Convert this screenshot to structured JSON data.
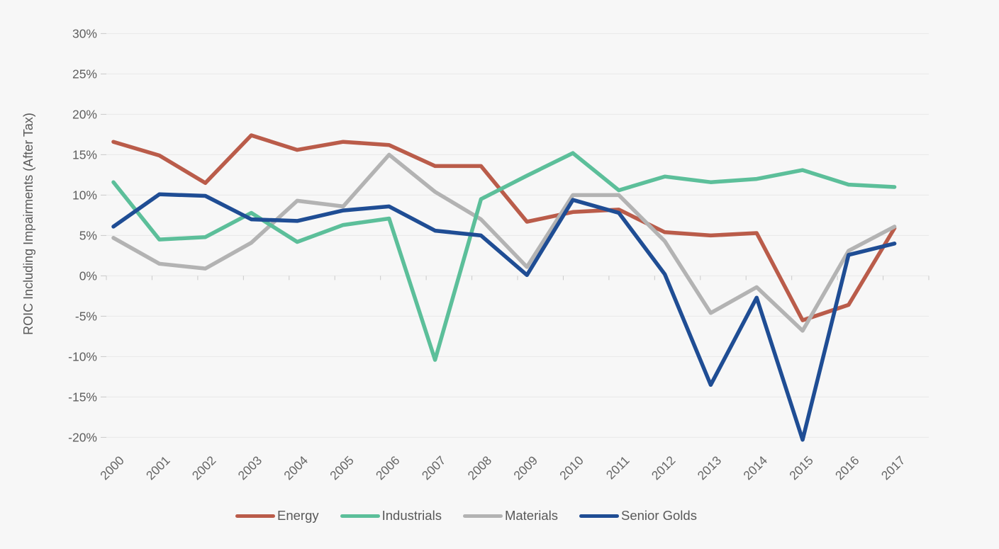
{
  "chart_data": {
    "type": "line",
    "title": "",
    "xlabel": "",
    "ylabel": "ROIC Including Impairments (After Tax)",
    "categories": [
      "2000",
      "2001",
      "2002",
      "2003",
      "2004",
      "2005",
      "2006",
      "2007",
      "2008",
      "2009",
      "2010",
      "2011",
      "2012",
      "2013",
      "2014",
      "2015",
      "2016",
      "2017"
    ],
    "series": [
      {
        "name": "Energy",
        "color": "#ba5c4a",
        "values": [
          16.6,
          14.9,
          11.5,
          17.4,
          15.6,
          16.6,
          16.2,
          13.6,
          13.6,
          6.7,
          7.9,
          8.2,
          5.4,
          5.0,
          5.3,
          -5.5,
          -3.6,
          5.9
        ]
      },
      {
        "name": "Industrials",
        "color": "#5cbf9a",
        "values": [
          11.6,
          4.5,
          4.8,
          7.8,
          4.2,
          6.3,
          7.1,
          -10.4,
          9.5,
          12.4,
          15.2,
          10.6,
          12.3,
          11.6,
          12.0,
          13.1,
          11.3,
          11.0
        ]
      },
      {
        "name": "Materials",
        "color": "#b3b3b3",
        "values": [
          4.7,
          1.5,
          0.9,
          4.1,
          9.3,
          8.6,
          15.0,
          10.4,
          7.0,
          1.1,
          10.0,
          10.0,
          4.3,
          -4.6,
          -1.4,
          -6.8,
          3.1,
          6.1
        ]
      },
      {
        "name": "Senior Golds",
        "color": "#1f4d94",
        "values": [
          6.1,
          10.1,
          9.9,
          7.0,
          6.8,
          8.1,
          8.6,
          5.6,
          5.0,
          0.1,
          9.4,
          7.8,
          0.2,
          -13.5,
          -2.7,
          -20.3,
          2.6,
          4.0
        ]
      }
    ],
    "y_tick_labels": [
      "30%",
      "25%",
      "20%",
      "15%",
      "10%",
      "5%",
      "0%",
      "-5%",
      "-10%",
      "-15%",
      "-20%"
    ],
    "y_tick_values": [
      30,
      25,
      20,
      15,
      10,
      5,
      0,
      -5,
      -10,
      -15,
      -20
    ],
    "ylim": [
      -20.5,
      30
    ],
    "grid": true,
    "legend_position": "bottom",
    "legend_entries": [
      "Energy",
      "Industrials",
      "Materials",
      "Senior Golds"
    ]
  },
  "colors": {
    "background": "#f7f7f7",
    "gridline": "#e8e8e8",
    "tick": "#c9c9c9",
    "axis_text": "#5f5f5f",
    "legend_text": "#595959"
  }
}
